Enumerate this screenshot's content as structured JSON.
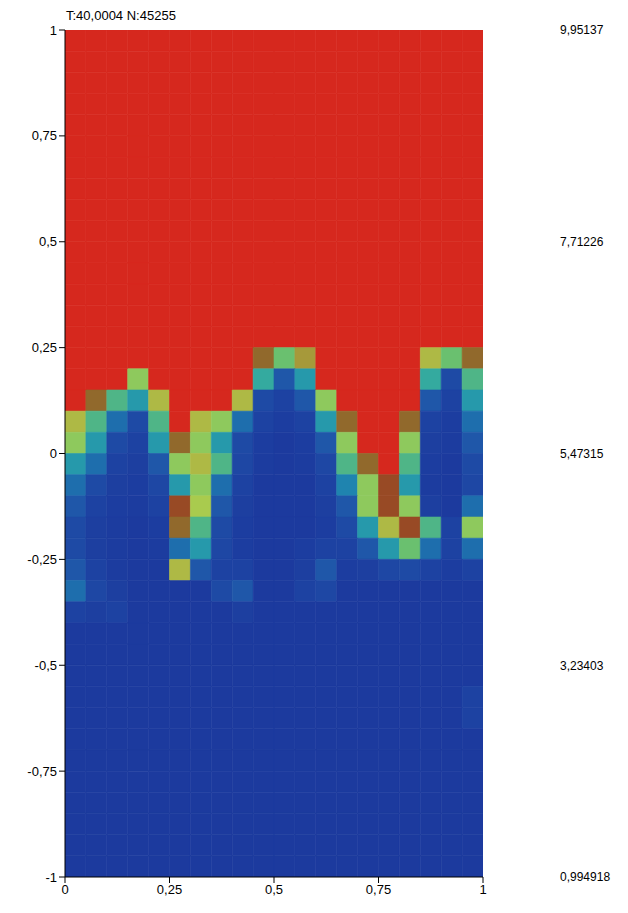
{
  "chart_data": {
    "type": "heatmap",
    "title": "T:40,0004 N:45255",
    "xlim": [
      0,
      1
    ],
    "xticks": [
      0,
      {
        "value": 0.25,
        "label": "0,25"
      },
      {
        "value": 0.5,
        "label": "0,5"
      },
      {
        "value": 0.75,
        "label": "0,75"
      },
      1
    ],
    "ylim": [
      -1,
      1
    ],
    "yticks": [
      -1,
      {
        "value": -0.75,
        "label": "-0,75"
      },
      {
        "value": -0.5,
        "label": "-0,5"
      },
      {
        "value": -0.25,
        "label": "-0,25"
      },
      0,
      {
        "value": 0.25,
        "label": "0,25"
      },
      {
        "value": 0.5,
        "label": "0,5"
      },
      {
        "value": 0.75,
        "label": "0,75"
      },
      1
    ],
    "colorbar": {
      "range": [
        0.994918,
        9.95137
      ],
      "ticks": [
        {
          "value": 0.994918,
          "label": "0,994918"
        },
        {
          "value": 3.23403,
          "label": "3,23403"
        },
        {
          "value": 5.47315,
          "label": "5,47315"
        },
        {
          "value": 7.71226,
          "label": "7,71226"
        },
        {
          "value": 9.95137,
          "label": "9,95137"
        }
      ]
    },
    "heatmap": {
      "x": [
        0.025,
        0.075,
        0.125,
        0.175,
        0.225,
        0.275,
        0.325,
        0.375,
        0.425,
        0.475,
        0.525,
        0.575,
        0.625,
        0.675,
        0.725,
        0.775,
        0.825,
        0.875,
        0.925,
        0.975
      ],
      "y": [
        0.975,
        0.925,
        0.875,
        0.825,
        0.775,
        0.725,
        0.675,
        0.625,
        0.575,
        0.525,
        0.475,
        0.425,
        0.375,
        0.325,
        0.275,
        0.225,
        0.175,
        0.125,
        0.075,
        0.025,
        -0.025,
        -0.075,
        -0.125,
        -0.175,
        -0.225,
        -0.275,
        -0.325,
        -0.375,
        -0.425,
        -0.475,
        -0.525,
        -0.575,
        -0.625,
        -0.675,
        -0.725,
        -0.775,
        -0.825,
        -0.875,
        -0.925,
        -0.975
      ],
      "values": [
        [
          9.95,
          9.95,
          9.95,
          9.95,
          9.95,
          9.95,
          9.95,
          9.95,
          9.95,
          9.95,
          9.95,
          9.95,
          9.95,
          9.95,
          9.95,
          9.95,
          9.95,
          9.95,
          9.95,
          9.95
        ],
        [
          9.95,
          9.95,
          9.95,
          9.95,
          9.95,
          9.95,
          9.95,
          9.95,
          9.95,
          9.95,
          9.95,
          9.95,
          9.95,
          9.95,
          9.95,
          9.95,
          9.95,
          9.95,
          9.95,
          9.95
        ],
        [
          9.95,
          9.95,
          9.95,
          9.95,
          9.95,
          9.95,
          9.95,
          9.95,
          9.95,
          9.95,
          9.95,
          9.95,
          9.95,
          9.95,
          9.95,
          9.95,
          9.95,
          9.95,
          9.95,
          9.95
        ],
        [
          9.95,
          9.95,
          9.95,
          9.95,
          9.95,
          9.95,
          9.95,
          9.95,
          9.95,
          9.95,
          9.95,
          9.95,
          9.95,
          9.95,
          9.95,
          9.95,
          9.95,
          9.95,
          9.95,
          9.95
        ],
        [
          9.95,
          9.95,
          9.95,
          9.95,
          9.95,
          9.95,
          9.95,
          9.95,
          9.95,
          9.95,
          9.95,
          9.95,
          9.95,
          9.95,
          9.95,
          9.95,
          9.95,
          9.95,
          9.95,
          9.95
        ],
        [
          9.95,
          9.95,
          9.95,
          9.95,
          9.95,
          9.95,
          9.95,
          9.95,
          9.95,
          9.95,
          9.95,
          9.95,
          9.95,
          9.95,
          9.95,
          9.95,
          9.95,
          9.95,
          9.95,
          9.95
        ],
        [
          9.95,
          9.95,
          9.95,
          9.95,
          9.95,
          9.95,
          9.95,
          9.95,
          9.95,
          9.95,
          9.95,
          9.95,
          9.95,
          9.95,
          9.95,
          9.95,
          9.95,
          9.95,
          9.95,
          9.95
        ],
        [
          9.95,
          9.95,
          9.95,
          9.95,
          9.95,
          9.95,
          9.95,
          9.95,
          9.95,
          9.95,
          9.95,
          9.95,
          9.95,
          9.95,
          9.95,
          9.95,
          9.95,
          9.95,
          9.95,
          9.95
        ],
        [
          9.95,
          9.95,
          9.95,
          9.95,
          9.95,
          9.95,
          9.95,
          9.95,
          9.95,
          9.95,
          9.95,
          9.95,
          9.95,
          9.95,
          9.95,
          9.95,
          9.95,
          9.95,
          9.95,
          9.95
        ],
        [
          9.95,
          9.95,
          9.95,
          9.95,
          9.95,
          9.95,
          9.95,
          9.95,
          9.95,
          9.95,
          9.95,
          9.95,
          9.95,
          9.95,
          9.95,
          9.95,
          9.95,
          9.95,
          9.95,
          9.95
        ],
        [
          9.95,
          9.95,
          9.95,
          9.95,
          9.95,
          9.95,
          9.95,
          9.95,
          9.95,
          9.95,
          9.95,
          9.95,
          9.95,
          9.95,
          9.95,
          9.95,
          9.95,
          9.95,
          9.95,
          9.95
        ],
        [
          9.95,
          9.95,
          9.95,
          9.95,
          9.95,
          9.95,
          9.95,
          9.95,
          9.95,
          9.95,
          9.95,
          9.95,
          9.95,
          9.95,
          9.95,
          9.95,
          9.95,
          9.95,
          9.95,
          9.95
        ],
        [
          9.95,
          9.95,
          9.95,
          9.95,
          9.95,
          9.95,
          9.95,
          9.95,
          9.95,
          9.95,
          9.95,
          9.95,
          9.95,
          9.95,
          9.95,
          9.95,
          9.95,
          9.95,
          9.95,
          9.95
        ],
        [
          9.95,
          9.95,
          9.95,
          9.95,
          9.95,
          9.95,
          9.95,
          9.95,
          9.95,
          9.95,
          9.95,
          9.95,
          9.95,
          9.95,
          9.95,
          9.95,
          9.95,
          9.95,
          9.95,
          9.95
        ],
        [
          9.95,
          9.95,
          9.95,
          9.95,
          9.95,
          9.95,
          9.95,
          9.95,
          9.95,
          9.95,
          9.95,
          9.95,
          9.95,
          9.95,
          9.95,
          9.95,
          9.95,
          9.95,
          9.95,
          9.95
        ],
        [
          9.95,
          9.95,
          9.95,
          9.95,
          9.95,
          9.95,
          9.95,
          9.95,
          9.95,
          8,
          5.5,
          7.5,
          9.95,
          9.95,
          9.95,
          9.95,
          9.95,
          7,
          5.5,
          8
        ],
        [
          9.95,
          9.95,
          9.95,
          6,
          9.95,
          9.95,
          9.95,
          9.95,
          9.95,
          4.5,
          2.5,
          4,
          9.95,
          9.95,
          9.95,
          9.95,
          9.95,
          4.5,
          2,
          5
        ],
        [
          9.95,
          8,
          5,
          4,
          7,
          9.95,
          9.95,
          9.95,
          7,
          2,
          1.5,
          2.5,
          6,
          9.95,
          9.95,
          9.95,
          9.95,
          2.5,
          1.5,
          4
        ],
        [
          7,
          5,
          3,
          2,
          5,
          9.95,
          7,
          6,
          3,
          1.5,
          1.2,
          1.5,
          4,
          8,
          9.95,
          9.95,
          8,
          1.5,
          1.2,
          3
        ],
        [
          6,
          4,
          2,
          1.5,
          4,
          8,
          6,
          4,
          2,
          1.2,
          1,
          1.2,
          2.5,
          6,
          9.95,
          9.95,
          6,
          1.3,
          1.1,
          2.5
        ],
        [
          4,
          3,
          1.5,
          1.3,
          2.5,
          6,
          7,
          5,
          1.8,
          1.1,
          1,
          1.1,
          1.8,
          5,
          8,
          9.95,
          5,
          1.2,
          1,
          2
        ],
        [
          3,
          2,
          1.3,
          1.2,
          1.8,
          4,
          6,
          3,
          1.5,
          1,
          1,
          1,
          1.5,
          3.5,
          6,
          8.5,
          4,
          1.1,
          1,
          1.8
        ],
        [
          2.5,
          1.5,
          1.2,
          1.1,
          1.5,
          8.5,
          6.5,
          2.5,
          1.3,
          1,
          1,
          1,
          1.3,
          2.5,
          6,
          8.5,
          6,
          1.3,
          1,
          3
        ],
        [
          2,
          1.3,
          1.1,
          1,
          1.2,
          8,
          5,
          2,
          1.2,
          1,
          1,
          1,
          1.2,
          2,
          4,
          7,
          8.5,
          5,
          1.5,
          6
        ],
        [
          2,
          1.3,
          1.1,
          1,
          1.1,
          3,
          4,
          1.8,
          1.2,
          1,
          1,
          1.2,
          1.5,
          1.5,
          2.5,
          4,
          5.5,
          3,
          1.5,
          3
        ],
        [
          2.5,
          1.5,
          1.1,
          1,
          1,
          7,
          2.5,
          1.5,
          1.5,
          1,
          1,
          1.3,
          2.5,
          1.2,
          1.3,
          1.8,
          2,
          1.5,
          1.2,
          1.5
        ],
        [
          3,
          1.8,
          1.3,
          1,
          1,
          1,
          1,
          2,
          2.5,
          1,
          1,
          1.5,
          1.8,
          1,
          1,
          1,
          1,
          1,
          1,
          1
        ],
        [
          1.5,
          1.3,
          1.5,
          1,
          1,
          1,
          1,
          1,
          1.3,
          1,
          1,
          1,
          1,
          1,
          1,
          1,
          1,
          1,
          1,
          1
        ],
        [
          1,
          1,
          1,
          1,
          1,
          1,
          1,
          1,
          1,
          1,
          1,
          1,
          1,
          1,
          1,
          1,
          1,
          1,
          1,
          1
        ],
        [
          1,
          1,
          1,
          1,
          1,
          1,
          1,
          1,
          1,
          1,
          1,
          1,
          1,
          1,
          1,
          1,
          1,
          1,
          1,
          1
        ],
        [
          1,
          1,
          1,
          1,
          1,
          1,
          1,
          1,
          1,
          1,
          1,
          1,
          1,
          1,
          1,
          1,
          1,
          1,
          1,
          1
        ],
        [
          1,
          1,
          1,
          1,
          1,
          1,
          1,
          1,
          1,
          1,
          1,
          1,
          1,
          1,
          1,
          1,
          1,
          1,
          1,
          1.5
        ],
        [
          1,
          1,
          1,
          1,
          1,
          1,
          1,
          1,
          1,
          1,
          1,
          1,
          1,
          1,
          1,
          1,
          1,
          1,
          1,
          1.5
        ],
        [
          1,
          1,
          1,
          1,
          1,
          1,
          1,
          1,
          1,
          1,
          1,
          1,
          1,
          1,
          1,
          1,
          1,
          1,
          1,
          1
        ],
        [
          1,
          1,
          1,
          1,
          1,
          1,
          1,
          1,
          1,
          1,
          1,
          1,
          1,
          1,
          1,
          1,
          1,
          1,
          1,
          1
        ],
        [
          1,
          1,
          1,
          1,
          1,
          1,
          1,
          1,
          1,
          1,
          1,
          1,
          1,
          1,
          1,
          1,
          1,
          1,
          1,
          1
        ],
        [
          1,
          1,
          1,
          1,
          1,
          1,
          1,
          1,
          1,
          1,
          1,
          1,
          1,
          1,
          1,
          1,
          1,
          1,
          1,
          1
        ],
        [
          1,
          1,
          1,
          1,
          1,
          1,
          1,
          1,
          1,
          1,
          1,
          1,
          1,
          1,
          1,
          1,
          1,
          1,
          1,
          1
        ],
        [
          1,
          1,
          1,
          1,
          1,
          1,
          1,
          1,
          1,
          1,
          1,
          1,
          1,
          1,
          1,
          1,
          1,
          1,
          1,
          1
        ],
        [
          1,
          1,
          1,
          1,
          1,
          1,
          1,
          1,
          1,
          1,
          1,
          1,
          1,
          1,
          1,
          1,
          1,
          1,
          1,
          1
        ]
      ]
    }
  }
}
